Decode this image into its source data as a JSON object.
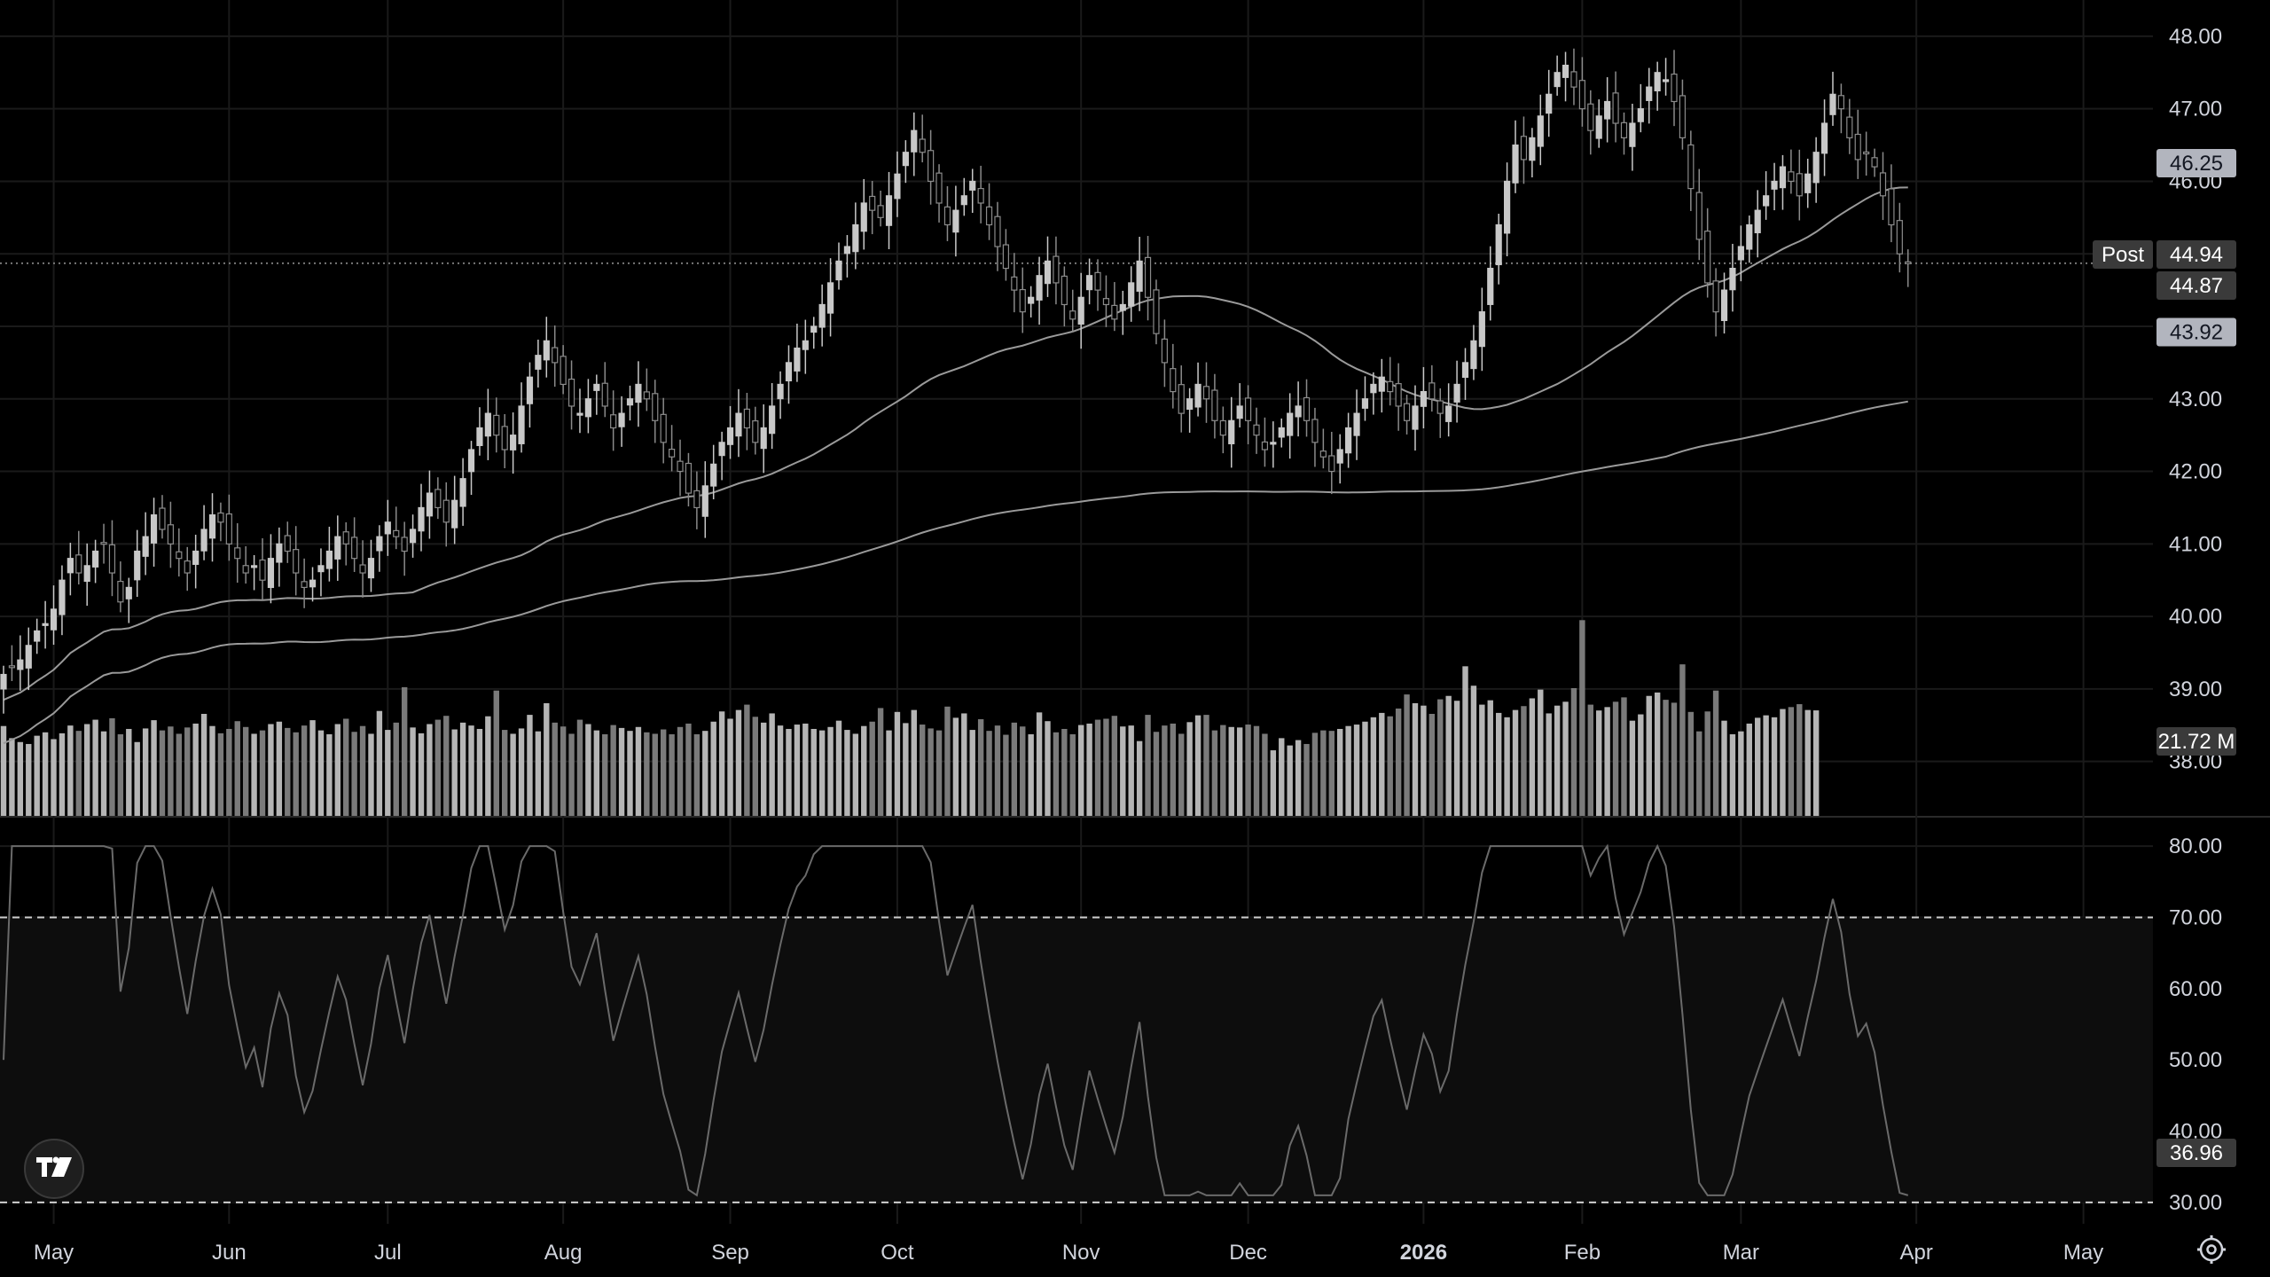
{
  "chart_data": {
    "type": "candlestick",
    "colors": {
      "background": "#000000",
      "grid": "#1a1a1a",
      "candle_up": "#c8c8c8",
      "candle_down": "#8a8a8a",
      "ma": "#9a9a9a",
      "volume_up": "#b5b5b5",
      "volume_down": "#7a7a7a",
      "rsi_line": "#6a6a6a",
      "text": "#d1d4dc",
      "badge": "#b2b5be"
    },
    "x_axis": {
      "labels": [
        {
          "label": "May",
          "bar": 6,
          "bold": false
        },
        {
          "label": "Jun",
          "bar": 27,
          "bold": false
        },
        {
          "label": "Jul",
          "bar": 46,
          "bold": false
        },
        {
          "label": "Aug",
          "bar": 67,
          "bold": false
        },
        {
          "label": "Sep",
          "bar": 87,
          "bold": false
        },
        {
          "label": "Oct",
          "bar": 107,
          "bold": false
        },
        {
          "label": "Nov",
          "bar": 129,
          "bold": false
        },
        {
          "label": "Dec",
          "bar": 149,
          "bold": false
        },
        {
          "label": "2026",
          "bar": 170,
          "bold": true
        },
        {
          "label": "Feb",
          "bar": 189,
          "bold": false
        },
        {
          "label": "Mar",
          "bar": 208,
          "bold": false
        },
        {
          "label": "Apr",
          "bar": 229,
          "bold": false
        },
        {
          "label": "May",
          "bar": 249,
          "bold": false
        }
      ]
    },
    "price_axis": {
      "min": 37.25,
      "max": 48.5,
      "ticks": [
        "38.00",
        "39.00",
        "40.00",
        "41.00",
        "42.00",
        "43.00",
        "44.00",
        "45.00",
        "46.00",
        "47.00",
        "48.00"
      ]
    },
    "rsi_axis": {
      "min": 27,
      "max": 84,
      "ticks": [
        "30.00",
        "40.00",
        "50.00",
        "60.00",
        "70.00",
        "80.00"
      ],
      "overbought": 70,
      "oversold": 30
    },
    "price_labels": [
      {
        "value": 46.25,
        "text": "46.25"
      },
      {
        "value": 44.94,
        "text": "44.94",
        "tag": "Post"
      },
      {
        "value": 44.87,
        "text": "44.87"
      },
      {
        "value": 43.92,
        "text": "43.92"
      }
    ],
    "volume_label": {
      "value": 21.72,
      "text": "21.72 M"
    },
    "rsi_label": {
      "value": 36.96,
      "text": "36.96"
    },
    "last_price": 44.87,
    "closes": [
      39.2,
      39.3,
      39.4,
      39.6,
      39.8,
      39.9,
      40.1,
      40.5,
      40.8,
      40.6,
      40.7,
      40.9,
      41.0,
      40.6,
      40.2,
      40.4,
      40.9,
      41.1,
      41.4,
      41.2,
      41.0,
      40.8,
      40.6,
      40.9,
      41.2,
      41.4,
      41.3,
      41.0,
      40.8,
      40.6,
      40.7,
      40.5,
      40.8,
      41.0,
      40.9,
      40.6,
      40.4,
      40.5,
      40.7,
      40.9,
      41.1,
      41.0,
      40.8,
      40.6,
      40.8,
      41.1,
      41.3,
      41.1,
      40.9,
      41.2,
      41.5,
      41.7,
      41.5,
      41.3,
      41.6,
      41.9,
      42.3,
      42.6,
      42.8,
      42.5,
      42.3,
      42.5,
      42.9,
      43.3,
      43.6,
      43.8,
      43.5,
      43.2,
      42.9,
      42.8,
      43.0,
      43.2,
      42.9,
      42.6,
      42.8,
      43.0,
      43.2,
      43.0,
      42.7,
      42.4,
      42.2,
      42.0,
      41.7,
      41.5,
      41.8,
      42.1,
      42.4,
      42.6,
      42.8,
      42.6,
      42.4,
      42.6,
      42.9,
      43.2,
      43.5,
      43.7,
      43.8,
      44.0,
      44.3,
      44.6,
      44.9,
      45.1,
      45.4,
      45.7,
      45.6,
      45.5,
      45.8,
      46.1,
      46.4,
      46.7,
      46.4,
      46.0,
      45.7,
      45.4,
      45.6,
      45.8,
      46.0,
      45.7,
      45.4,
      45.1,
      44.8,
      44.5,
      44.2,
      44.4,
      44.7,
      44.9,
      44.6,
      44.3,
      44.1,
      44.4,
      44.7,
      44.5,
      44.3,
      44.1,
      44.3,
      44.6,
      44.9,
      44.4,
      43.9,
      43.5,
      43.1,
      42.8,
      43.0,
      43.2,
      43.0,
      42.7,
      42.5,
      42.7,
      42.9,
      42.7,
      42.5,
      42.3,
      42.4,
      42.6,
      42.8,
      42.9,
      42.7,
      42.4,
      42.2,
      42.0,
      42.3,
      42.6,
      42.8,
      43.0,
      43.2,
      43.3,
      43.1,
      42.9,
      42.7,
      42.9,
      43.1,
      43.0,
      42.8,
      42.9,
      43.2,
      43.5,
      43.8,
      44.2,
      44.8,
      45.4,
      46.0,
      46.5,
      46.3,
      46.6,
      46.9,
      47.2,
      47.5,
      47.6,
      47.3,
      47.0,
      46.7,
      46.9,
      47.1,
      46.8,
      46.6,
      46.8,
      47.0,
      47.3,
      47.5,
      47.4,
      47.1,
      46.6,
      45.9,
      45.2,
      44.6,
      44.2,
      44.5,
      44.8,
      45.1,
      45.4,
      45.6,
      45.8,
      46.0,
      46.2,
      46.0,
      45.8,
      46.1,
      46.4,
      46.8,
      47.2,
      47.0,
      46.6,
      46.3,
      46.4,
      46.2,
      45.8,
      45.4,
      45.0,
      44.87
    ],
    "volumes": [
      18.5,
      16.0,
      15.2,
      14.8,
      16.5,
      17.2,
      15.8,
      17.0,
      18.6,
      17.5,
      18.9,
      19.8,
      17.4,
      20.1,
      16.8,
      17.9,
      15.2,
      18.0,
      19.7,
      17.6,
      18.4,
      16.9,
      18.2,
      19.0,
      21.0,
      18.5,
      17.0,
      17.9,
      19.5,
      18.3,
      16.9,
      17.6,
      18.9,
      19.4,
      18.1,
      17.2,
      18.6,
      19.7,
      17.6,
      16.8,
      18.9,
      20.0,
      17.3,
      18.5,
      16.9,
      21.6,
      17.7,
      19.2,
      26.5,
      18.2,
      17.0,
      18.9,
      19.8,
      20.6,
      17.8,
      19.2,
      18.6,
      17.9,
      20.5,
      25.8,
      17.7,
      16.9,
      18.0,
      20.8,
      17.4,
      23.2,
      19.2,
      18.4,
      16.9,
      19.8,
      18.9,
      17.6,
      16.8,
      18.7,
      18.1,
      17.5,
      18.3,
      17.2,
      16.9,
      17.8,
      16.8,
      18.3,
      19.0,
      16.8,
      17.5,
      19.4,
      21.5,
      20.0,
      21.8,
      22.9,
      20.4,
      19.2,
      21.1,
      18.6,
      17.9,
      18.8,
      19.0,
      17.9,
      17.6,
      18.3,
      19.6,
      17.7,
      16.9,
      18.5,
      19.4,
      22.2,
      17.6,
      21.4,
      19.1,
      21.8,
      18.8,
      18.0,
      17.6,
      22.5,
      20.2,
      21.1,
      17.7,
      19.9,
      17.5,
      18.6,
      16.7,
      19.2,
      18.4,
      16.8,
      21.3,
      19.5,
      17.2,
      17.9,
      16.8,
      18.7,
      19.0,
      19.8,
      20.0,
      20.6,
      18.4,
      18.6,
      15.4,
      20.8,
      17.3,
      18.6,
      19.0,
      16.9,
      19.3,
      20.7,
      20.8,
      17.6,
      18.7,
      18.3,
      18.2,
      18.8,
      18.5,
      16.9,
      13.5,
      16.0,
      14.5,
      15.6,
      14.8,
      17.1,
      17.6,
      17.5,
      17.9,
      18.5,
      18.8,
      19.4,
      20.3,
      21.2,
      20.5,
      22.1,
      25.0,
      23.2,
      22.7,
      21.0,
      24.0,
      24.7,
      23.7,
      30.8,
      26.8,
      22.9,
      23.8,
      21.2,
      20.3,
      21.8,
      22.6,
      24.2,
      26.0,
      21.1,
      22.7,
      23.5,
      26.3,
      40.3,
      22.9,
      21.7,
      22.4,
      23.5,
      24.4,
      19.6,
      20.9,
      24.7,
      25.4,
      23.9,
      23.3,
      31.2,
      21.4,
      17.4,
      21.5,
      25.8,
      19.6,
      16.8,
      17.4,
      19.0,
      20.2,
      20.7,
      20.3,
      22.0,
      22.4,
      23.0,
      21.8,
      21.72
    ]
  }
}
